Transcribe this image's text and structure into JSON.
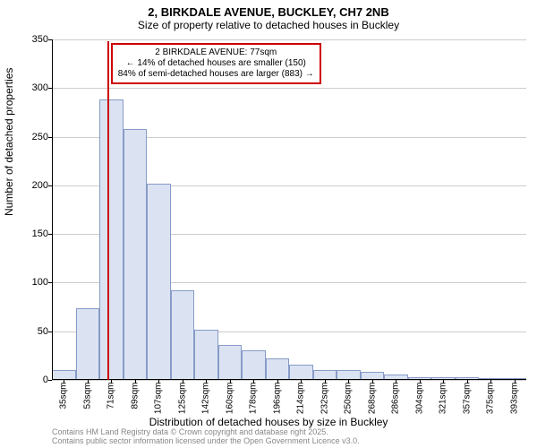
{
  "title": "2, BIRKDALE AVENUE, BUCKLEY, CH7 2NB",
  "subtitle": "Size of property relative to detached houses in Buckley",
  "y_label": "Number of detached properties",
  "x_label": "Distribution of detached houses by size in Buckley",
  "footnote1": "Contains HM Land Registry data © Crown copyright and database right 2025.",
  "footnote2": "Contains public sector information licensed under the Open Government Licence v3.0.",
  "annotation": {
    "line1": "2 BIRKDALE AVENUE: 77sqm",
    "line2": "← 14% of detached houses are smaller (150)",
    "line3": "84% of semi-detached houses are larger (883) →"
  },
  "chart": {
    "type": "histogram",
    "ylim": [
      0,
      350
    ],
    "ytick_step": 50,
    "x_categories": [
      "35sqm",
      "53sqm",
      "71sqm",
      "89sqm",
      "107sqm",
      "125sqm",
      "142sqm",
      "160sqm",
      "178sqm",
      "196sqm",
      "214sqm",
      "232sqm",
      "250sqm",
      "268sqm",
      "286sqm",
      "304sqm",
      "321sqm",
      "357sqm",
      "375sqm",
      "393sqm"
    ],
    "values": [
      10,
      74,
      288,
      258,
      202,
      92,
      52,
      36,
      30,
      22,
      16,
      10,
      10,
      8,
      6,
      3,
      3,
      3,
      2,
      2
    ],
    "bar_fill": "#dbe3f3",
    "bar_border": "#879bc6",
    "grid_color": "#cccccc",
    "background_color": "#ffffff",
    "marker_color": "#cc0000",
    "marker_category_index": 2.33,
    "title_fontsize": 13,
    "subtitle_fontsize": 12,
    "label_fontsize": 12,
    "tick_fontsize": 11,
    "xtick_fontsize": 10,
    "footnote_fontsize": 9,
    "footnote_color": "#888888"
  }
}
